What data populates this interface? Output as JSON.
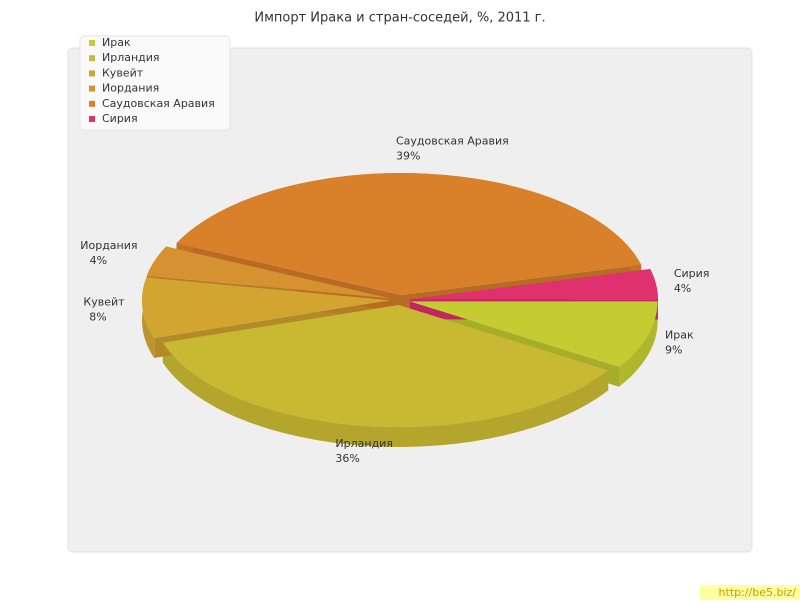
{
  "chart_data": {
    "type": "pie",
    "title": "Импорт Ирака и стран-соседей, %, 2011 г.",
    "categories": [
      "Ирак",
      "Ирландия",
      "Кувейт",
      "Иордания",
      "Саудовская Аравия",
      "Сирия"
    ],
    "values": [
      9,
      36,
      8,
      4,
      39,
      4
    ],
    "value_labels": [
      "9%",
      "36%",
      "8%",
      "4%",
      "39%",
      "4%"
    ],
    "colors": [
      "#c4cc32",
      "#c9b832",
      "#d2a430",
      "#d69230",
      "#d9802a",
      "#e0306e"
    ],
    "legend": "top-left"
  },
  "watermark": "http://be5.biz/"
}
